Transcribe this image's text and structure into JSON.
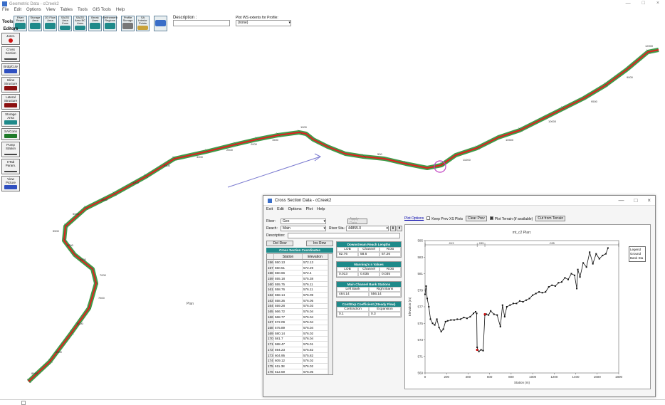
{
  "app": {
    "title": "Geometric Data - cCreek2",
    "menu": [
      "File",
      "Edit",
      "Options",
      "View",
      "Tables",
      "Tools",
      "GIS Tools",
      "Help"
    ],
    "window_controls": [
      "—",
      "□",
      "×"
    ]
  },
  "toolbar": {
    "tools_label": "Tools",
    "buttons": [
      {
        "label": "River Reach",
        "icon": "river-reach-icon"
      },
      {
        "label": "Storage Area",
        "icon": "storage-area-icon"
      },
      {
        "label": "2D Flow Area",
        "icon": "flow-area-icon"
      },
      {
        "label": "SA/2D Area Conn",
        "icon": "sa-connection-icon"
      },
      {
        "label": "SA/2D Area BC Lines",
        "icon": "bc-lines-icon"
      },
      {
        "label": "Break Lines",
        "icon": "break-lines-icon"
      },
      {
        "label": "Refinement Regions",
        "icon": "refinement-regions-icon"
      },
      {
        "label": "Profile Storage",
        "icon": "profile-icon"
      },
      {
        "label": "SA Interior Points",
        "icon": "interior-points-icon"
      },
      {
        "label": "",
        "icon": "map-layers-icon"
      }
    ],
    "description_label": "Description :",
    "plot_wse_label": "Plot WS extents for Profile:",
    "plot_wse_value": "(none)"
  },
  "editors": {
    "header": "Editors",
    "items": [
      "Junct.",
      "Cross Section",
      "Brdg/Culv",
      "Inline Structure",
      "Lateral Structure",
      "Storage Area",
      "SA/Conn",
      "Pump Station",
      "HTab Param.",
      "View Picture"
    ]
  },
  "map": {
    "labels": [
      "8650",
      "8500",
      "8000",
      "7500",
      "7000",
      "6500",
      "6000",
      "5500",
      "5000",
      "4500",
      "4000",
      "3500",
      "3000",
      "2500",
      "2000",
      "1500",
      "1000",
      "500",
      "11000",
      "10500",
      "10000",
      "9500",
      "9000",
      "12000"
    ],
    "plan_label": "Plan",
    "colors": {
      "river": "#e02020",
      "banks": "#1f8a2a",
      "arrow": "#7a7ad0",
      "highlight": "#c040c0"
    }
  },
  "xs_window": {
    "title": "Cross Section Data - cCreek2",
    "menu": [
      "Exit",
      "Edit",
      "Options",
      "Plot",
      "Help"
    ],
    "river_label": "River:",
    "river_value": "Geo",
    "reach_label": "Reach:",
    "reach_value": "Main",
    "river_sta_label": "River Sta.:",
    "river_sta_value": "44855.0",
    "description_label": "Description:",
    "del_row": "Del Row",
    "ins_row": "Ins Row",
    "apply_data": "Apply Data",
    "grid_title": "Cross Section Coordinates",
    "grid_cols": [
      "",
      "Station",
      "Elevation"
    ],
    "grid_rows": [
      [
        "156",
        "550.13",
        "572.13"
      ],
      [
        "157",
        "550.51",
        "572.29"
      ],
      [
        "158",
        "550.66",
        "572.4"
      ],
      [
        "159",
        "555.18",
        "575.38"
      ],
      [
        "160",
        "555.75",
        "576.11"
      ],
      [
        "161",
        "558.76",
        "576.11"
      ],
      [
        "162",
        "558.14",
        "576.09"
      ],
      [
        "163",
        "558.36",
        "576.05"
      ],
      [
        "164",
        "559.28",
        "576.03"
      ],
      [
        "165",
        "566.72",
        "576.04"
      ],
      [
        "166",
        "568.77",
        "576.04"
      ],
      [
        "167",
        "572.09",
        "576.04"
      ],
      [
        "168",
        "575.89",
        "576.04"
      ],
      [
        "169",
        "580.14",
        "576.02"
      ],
      [
        "170",
        "581.7",
        "576.04"
      ],
      [
        "171",
        "588.47",
        "576.01"
      ],
      [
        "172",
        "594.23",
        "575.82"
      ],
      [
        "173",
        "604.95",
        "575.82"
      ],
      [
        "174",
        "609.12",
        "576.02"
      ],
      [
        "175",
        "611.38",
        "576.02"
      ],
      [
        "176",
        "612.59",
        "576.05"
      ]
    ],
    "downstream": {
      "title": "Downstream Reach Lengths",
      "cols": [
        "LOB",
        "Channel",
        "ROB"
      ],
      "vals": [
        "82.76",
        "58.6",
        "57.26"
      ]
    },
    "mannings": {
      "title": "Manning's n Values",
      "cols": [
        "LOB",
        "Channel",
        "ROB"
      ],
      "vals": [
        "0.013",
        "0.035",
        "0.035"
      ]
    },
    "bank_sta": {
      "title": "Main Channel Bank Stations",
      "cols": [
        "Left Bank",
        "Right Bank"
      ],
      "vals": [
        "484.14",
        "556.14"
      ]
    },
    "cont_exp": {
      "title": "Cont\\Exp Coefficient (Steady Flow)",
      "cols": [
        "Contraction",
        "Expansion"
      ],
      "vals": [
        "0.1",
        "0.3"
      ]
    },
    "plot_options": "Plot Options",
    "keep_prev": "Keep Prev XS Plots",
    "clear_prev": "Clear Prev",
    "plot_terrain": "Plot Terrain (if available)",
    "cut_from_terrain": "Cut from Terrain"
  },
  "chart_data": {
    "type": "line",
    "title": "mt_c2     Plan:",
    "xlabel": "Station (m)",
    "ylabel": "Elevation (m)",
    "xlim": [
      0,
      1800
    ],
    "ylim": [
      569,
      585
    ],
    "xticks": [
      0,
      200,
      400,
      600,
      800,
      1000,
      1200,
      1400,
      1600,
      1800
    ],
    "yticks": [
      569,
      571,
      573,
      575,
      577,
      579,
      581,
      583,
      585
    ],
    "reach_labels": [
      ".013",
      ".035",
      ".035"
    ],
    "legend": [
      "Legend",
      "Ground",
      "Bank Sta"
    ],
    "legend_position": "top-right",
    "series": [
      {
        "name": "Ground",
        "x": [
          0,
          10,
          20,
          35,
          50,
          70,
          90,
          110,
          130,
          150,
          170,
          190,
          210,
          240,
          270,
          300,
          330,
          360,
          390,
          420,
          450,
          470,
          480,
          484,
          490,
          500,
          520,
          540,
          556,
          560,
          570,
          590,
          610,
          640,
          670,
          700,
          720,
          740,
          760,
          790,
          820,
          850,
          880,
          910,
          940,
          970,
          1000,
          1030,
          1060,
          1090,
          1120,
          1150,
          1180,
          1210,
          1240,
          1270,
          1300,
          1330,
          1360,
          1390,
          1410,
          1420,
          1440,
          1470,
          1500,
          1530,
          1560,
          1590,
          1620,
          1650,
          1680,
          1700
        ],
        "y": [
          578.5,
          579.5,
          578,
          577,
          575.5,
          575,
          574.8,
          575.5,
          574.5,
          574,
          574.3,
          575.2,
          575.3,
          575.4,
          575.4,
          575.5,
          575.5,
          575.7,
          575.6,
          575.8,
          576.2,
          576.4,
          576.2,
          572.1,
          571.8,
          571.6,
          571.8,
          571.7,
          576.0,
          576.1,
          576.1,
          576.0,
          576.5,
          576.1,
          576.0,
          574.6,
          577.2,
          575.8,
          577.0,
          577.2,
          577.4,
          577.4,
          577.7,
          577.6,
          577.8,
          578.0,
          578.4,
          578.6,
          578.8,
          578.7,
          578.8,
          579.4,
          579.6,
          579.5,
          579.9,
          580.0,
          580.5,
          580.3,
          581.0,
          580.8,
          579.2,
          581.5,
          580.6,
          582.3,
          581.8,
          583.6,
          582.2,
          583.4,
          582.8,
          583.2,
          583.4,
          584.1
        ]
      }
    ]
  }
}
